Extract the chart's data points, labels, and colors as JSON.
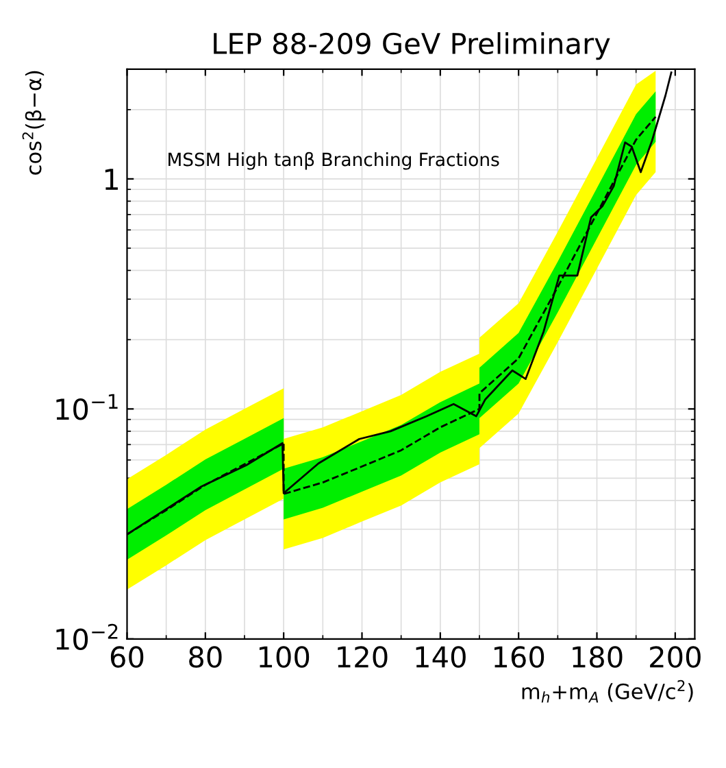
{
  "chart_data": {
    "type": "line",
    "title": "LEP 88-209 GeV Preliminary",
    "xlabel": "m$_{h}$+m$_{A}$ (GeV/c$^{2}$)",
    "ylabel": "cos$^{2}$(β−α)",
    "annotations": [
      "MSSM High tanβ Branching Fractions"
    ],
    "log": "y",
    "grid": true,
    "xlim": [
      60,
      205
    ],
    "xticks": [
      60,
      80,
      100,
      120,
      140,
      160,
      180,
      200
    ],
    "ylim": [
      0.01,
      3
    ],
    "yticks": [
      {
        "value": 0.01,
        "label": "10$^{−2}$"
      },
      {
        "value": 0.1,
        "label": "10$^{−1}$"
      },
      1
    ],
    "series": [
      {
        "color": "#ffff00",
        "x": [
          60,
          70,
          80,
          90,
          100,
          100,
          110,
          120,
          130,
          140,
          150,
          150,
          160,
          170,
          180,
          190,
          195
        ],
        "values": [
          null,
          null,
          null,
          null,
          null,
          null,
          null,
          null,
          null,
          null,
          null,
          null,
          null,
          null,
          null,
          null,
          null
        ],
        "lower": [
          0.0164,
          0.0209,
          0.0269,
          0.0331,
          0.0407,
          0.0245,
          0.0275,
          0.0324,
          0.038,
          0.0479,
          0.0575,
          0.0676,
          0.0955,
          0.195,
          0.407,
          0.851,
          1.07
        ],
        "upper": [
          0.0495,
          0.0631,
          0.0813,
          0.1,
          0.123,
          0.0741,
          0.0832,
          0.0977,
          0.115,
          0.145,
          0.174,
          0.204,
          0.288,
          0.589,
          1.23,
          2.57,
          2.95
        ]
      },
      {
        "color": "#00ee00",
        "x": [
          60,
          70,
          80,
          90,
          100,
          100,
          110,
          120,
          130,
          140,
          150,
          150,
          160,
          170,
          180,
          190,
          195
        ],
        "values": [
          null,
          null,
          null,
          null,
          null,
          null,
          null,
          null,
          null,
          null,
          null,
          null,
          null,
          null,
          null,
          null,
          null
        ],
        "lower": [
          0.0221,
          0.0282,
          0.0363,
          0.0447,
          0.055,
          0.0331,
          0.0372,
          0.0437,
          0.0513,
          0.0646,
          0.0776,
          0.0912,
          0.129,
          0.263,
          0.55,
          1.15,
          1.45
        ],
        "upper": [
          0.0367,
          0.0468,
          0.0603,
          0.0741,
          0.0912,
          0.055,
          0.0617,
          0.0724,
          0.0851,
          0.107,
          0.129,
          0.151,
          0.214,
          0.437,
          0.912,
          1.91,
          2.4
        ]
      },
      {
        "type": "line",
        "color": "#000000",
        "line_style": "dashed",
        "x": [
          60,
          70,
          80,
          90,
          100,
          100,
          110,
          120,
          130,
          140,
          150,
          150,
          160,
          170,
          180,
          190,
          195
        ],
        "values": [
          0.0285,
          0.0363,
          0.0468,
          0.0575,
          0.0708,
          0.0427,
          0.0479,
          0.0562,
          0.0661,
          0.0832,
          0.1,
          0.117,
          0.166,
          0.339,
          0.708,
          1.48,
          1.86
        ]
      },
      {
        "type": "line",
        "color": "#000000",
        "line_style": "solid",
        "x": [
          60,
          79,
          90.5,
          99.7,
          100,
          108.9,
          119.3,
          127.3,
          136.5,
          143.4,
          149.2,
          151.5,
          158.4,
          161.8,
          166.4,
          170.4,
          175,
          178.5,
          181.4,
          184.3,
          187.2,
          188.9,
          191.2,
          194.1,
          197.5,
          199
        ],
        "values": [
          0.0285,
          0.046,
          0.057,
          0.071,
          0.043,
          0.058,
          0.074,
          0.08,
          0.093,
          0.105,
          0.093,
          0.11,
          0.147,
          0.135,
          0.217,
          0.38,
          0.38,
          0.68,
          0.76,
          0.93,
          1.44,
          1.38,
          1.07,
          1.47,
          2.3,
          2.9
        ]
      }
    ]
  }
}
